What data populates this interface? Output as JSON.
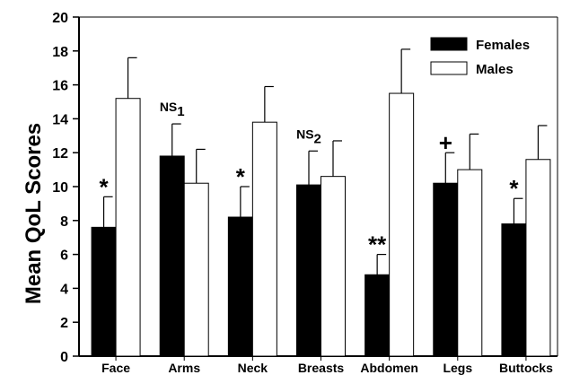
{
  "chart_data": {
    "type": "bar",
    "ylabel": "Mean QoL Scores",
    "xlabel": "",
    "ylim": [
      0,
      20
    ],
    "yticks": [
      0,
      2,
      4,
      6,
      8,
      10,
      12,
      14,
      16,
      18,
      20
    ],
    "categories": [
      "Face",
      "Arms",
      "Neck",
      "Breasts",
      "Abdomen",
      "Legs",
      "Buttocks"
    ],
    "series": [
      {
        "name": "Females",
        "color": "#000000",
        "values": [
          7.6,
          11.8,
          8.2,
          10.1,
          4.8,
          10.2,
          7.8
        ],
        "errors": [
          1.8,
          1.9,
          1.8,
          2.0,
          1.2,
          1.8,
          1.5
        ]
      },
      {
        "name": "Males",
        "color": "#ffffff",
        "values": [
          15.2,
          10.2,
          13.8,
          10.6,
          15.5,
          11.0,
          11.6
        ],
        "errors": [
          2.4,
          2.0,
          2.1,
          2.1,
          2.6,
          2.1,
          2.0
        ]
      }
    ],
    "annotations": [
      {
        "category": "Face",
        "text": "*",
        "sub": ""
      },
      {
        "category": "Arms",
        "text": "NS",
        "sub": "1"
      },
      {
        "category": "Neck",
        "text": "*",
        "sub": ""
      },
      {
        "category": "Breasts",
        "text": "NS",
        "sub": "2"
      },
      {
        "category": "Abdomen",
        "text": "**",
        "sub": ""
      },
      {
        "category": "Legs",
        "text": "+",
        "sub": ""
      },
      {
        "category": "Buttocks",
        "text": "*",
        "sub": ""
      }
    ],
    "legend_position": "top-right",
    "grid": false
  }
}
